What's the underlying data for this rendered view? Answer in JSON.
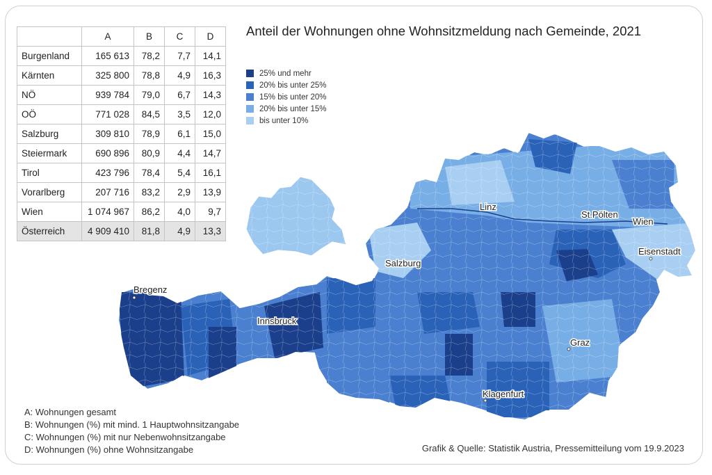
{
  "title": "Anteil der Wohnungen ohne Wohnsitzmeldung nach Gemeinde, 2021",
  "table": {
    "headers": [
      "",
      "A",
      "B",
      "C",
      "D"
    ],
    "rows": [
      {
        "name": "Burgenland",
        "a": "165 613",
        "b": "78,2",
        "c": "7,7",
        "d": "14,1"
      },
      {
        "name": "Kärnten",
        "a": "325 800",
        "b": "78,8",
        "c": "4,9",
        "d": "16,3"
      },
      {
        "name": "NÖ",
        "a": "939 784",
        "b": "79,0",
        "c": "6,7",
        "d": "14,3"
      },
      {
        "name": "OÖ",
        "a": "771 028",
        "b": "84,5",
        "c": "3,5",
        "d": "12,0"
      },
      {
        "name": "Salzburg",
        "a": "309 810",
        "b": "78,9",
        "c": "6,1",
        "d": "15,0"
      },
      {
        "name": "Steiermark",
        "a": "690 896",
        "b": "80,9",
        "c": "4,4",
        "d": "14,7"
      },
      {
        "name": "Tirol",
        "a": "423 796",
        "b": "78,4",
        "c": "5,4",
        "d": "16,1"
      },
      {
        "name": "Vorarlberg",
        "a": "207 716",
        "b": "83,2",
        "c": "2,9",
        "d": "13,9"
      },
      {
        "name": "Wien",
        "a": "1 074 967",
        "b": "86,2",
        "c": "4,0",
        "d": "9,7"
      }
    ],
    "total": {
      "name": "Österreich",
      "a": "4 909 410",
      "b": "81,8",
      "c": "4,9",
      "d": "13,3"
    }
  },
  "legend": [
    {
      "label": "25% und mehr",
      "color": "#1c3f8c"
    },
    {
      "label": "20% bis unter 25%",
      "color": "#2a62b8"
    },
    {
      "label": "15% bis unter 20%",
      "color": "#4a80cf"
    },
    {
      "label": "20% bis unter 15%",
      "color": "#78aee6"
    },
    {
      "label": "bis unter 10%",
      "color": "#a8cff2"
    }
  ],
  "cities": [
    "Bregenz",
    "Innsbruck",
    "Salzburg",
    "Linz",
    "St.Pölten",
    "Wien",
    "Eisenstadt",
    "Graz",
    "Klagenfurt"
  ],
  "notes": [
    "A: Wohnungen gesamt",
    "B: Wohnungen (%) mit mind. 1 Hauptwohnsitzangabe",
    "C: Wohnungen (%) mit nur Nebenwohnsitzangabe",
    "D: Wohnungen (%) ohne Wohnsitzangabe"
  ],
  "source": "Grafik & Quelle: Statistik Austria, Pressemitteilung vom 19.9.2023"
}
